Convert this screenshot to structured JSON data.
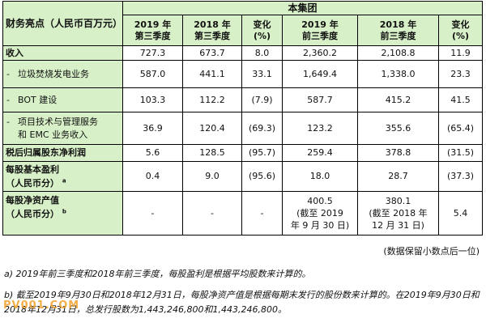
{
  "table": {
    "corner": "财务亮点（人民币百万元）",
    "group_header": "本集团",
    "columns": [
      {
        "line1": "2019 年",
        "line2": "第三季度"
      },
      {
        "line1": "2018 年",
        "line2": "第三季度"
      },
      {
        "line1": "变化",
        "line2": "(%)"
      },
      {
        "line1": "2019 年",
        "line2": "前三季度"
      },
      {
        "line1": "2018 年",
        "line2": "前三季度"
      },
      {
        "line1": "变化",
        "line2": "(%)"
      }
    ],
    "rows": {
      "revenue": {
        "label": "收入",
        "values": [
          "727.3",
          "673.7",
          "8.0",
          "2,360.2",
          "2,108.8",
          "11.9"
        ]
      },
      "waste": {
        "dash": "-",
        "label": "垃圾焚烧发电业务",
        "values": [
          "587.0",
          "441.1",
          "33.1",
          "1,649.4",
          "1,338.0",
          "23.3"
        ]
      },
      "bot": {
        "dash": "-",
        "label": "BOT 建设",
        "values": [
          "103.3",
          "112.2",
          "(7.9)",
          "587.7",
          "415.2",
          "41.5"
        ]
      },
      "emc": {
        "dash": "-",
        "label_line1": "项目技术与管理服务",
        "label_line2": "和 EMC 业务收入",
        "values": [
          "36.9",
          "120.4",
          "(69.3)",
          "123.2",
          "355.6",
          "(65.4)"
        ]
      },
      "profit": {
        "label": "税后归属股东净利润",
        "values": [
          "5.6",
          "128.5",
          "(95.7)",
          "259.4",
          "378.8",
          "(31.5)"
        ]
      },
      "eps": {
        "label_line1": "每股基本盈利",
        "label_line2": "（人民币分）",
        "sup": "a",
        "values": [
          "0.4",
          "9.0",
          "(95.6)",
          "18.0",
          "28.7",
          "(37.3)"
        ]
      },
      "nav": {
        "label_line1": "每股净资产值",
        "label_line2": "（人民币分）",
        "sup": "b",
        "values": [
          "-",
          "-",
          "-",
          "400.5",
          "380.1",
          "5.4"
        ],
        "note_2019_line1": "(截至 2019",
        "note_2019_line2": "年 9 月 30 日)",
        "note_2018_line1": "(截至 2018 年",
        "note_2018_line2": "12 月 31 日)"
      }
    }
  },
  "unit_note": "(数据保留小数点后一位)",
  "footnotes": {
    "a": "a) 2019年前三季度和2018年前三季度，每股盈利是根据平均股数来计算的。",
    "b": "b) 截至2019年9月30日和2018年12月31日，每股净资产值是根据每期末发行的股份数来计算的。在2019年9月30日和2018年12月31日，总发行股数为1,443,246,800和1,443,246,800。"
  },
  "watermark": "PV001.COM"
}
